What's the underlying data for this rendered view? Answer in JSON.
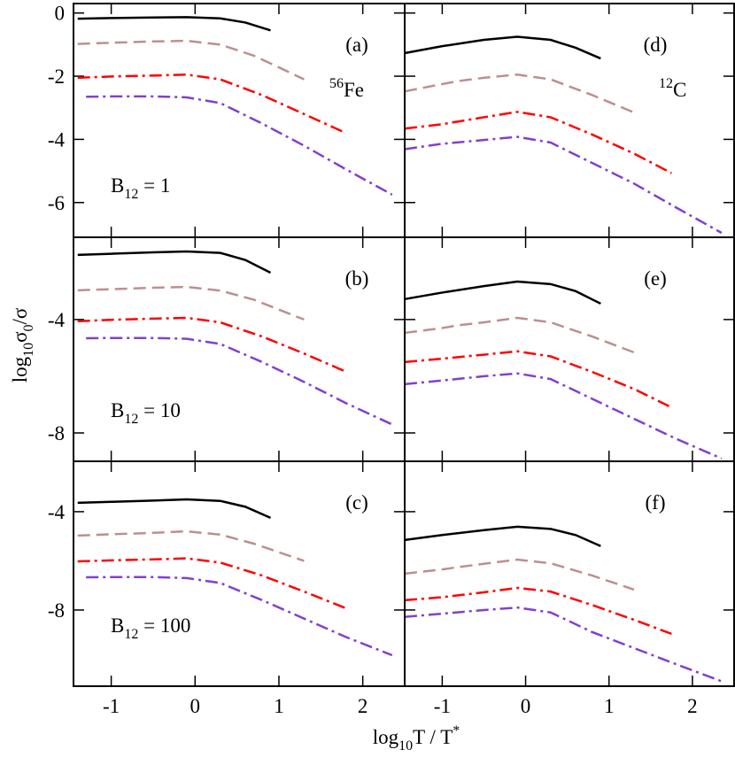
{
  "xlabel": [
    "log",
    "10",
    "T / T",
    "*"
  ],
  "ylabel": [
    "log",
    "10",
    "σ",
    "0",
    "/σ"
  ],
  "chart_data": [
    {
      "type": "line",
      "label": "(a)",
      "nucleus": [
        "56",
        "Fe"
      ],
      "field": [
        "B",
        "12",
        " = 1"
      ],
      "xlim": [
        -1.45,
        2.5
      ],
      "ylim": [
        -7.1,
        0.3
      ],
      "xticks": [
        -1,
        0,
        1,
        2
      ],
      "yticks": [
        -6,
        -4,
        -2,
        0
      ],
      "show_xticklabels": false,
      "show_yticklabels": true,
      "series": [
        {
          "color": "#000000",
          "dash": "solid",
          "x": [
            -1.4,
            -1,
            -0.5,
            -0.1,
            0.3,
            0.6,
            0.9
          ],
          "values": [
            -0.18,
            -0.16,
            -0.14,
            -0.13,
            -0.17,
            -0.3,
            -0.55
          ]
        },
        {
          "color": "#bc8f8f",
          "dash": "dashed",
          "x": [
            -1.4,
            -1,
            -0.5,
            -0.1,
            0.3,
            0.7,
            1.0,
            1.3
          ],
          "values": [
            -0.98,
            -0.94,
            -0.9,
            -0.88,
            -1.0,
            -1.35,
            -1.72,
            -2.1
          ]
        },
        {
          "color": "#ff0000",
          "dash": "dashdot",
          "x": [
            -1.4,
            -1,
            -0.5,
            -0.1,
            0.3,
            0.8,
            1.3,
            1.8
          ],
          "values": [
            -2.05,
            -2.01,
            -1.98,
            -1.95,
            -2.1,
            -2.6,
            -3.2,
            -3.8
          ]
        },
        {
          "color": "#8040d0",
          "dash": "dashdot",
          "x": [
            -1.3,
            -1,
            -0.5,
            -0.1,
            0.3,
            0.8,
            1.3,
            1.8,
            2.35
          ],
          "values": [
            -2.65,
            -2.64,
            -2.64,
            -2.67,
            -2.85,
            -3.5,
            -4.2,
            -4.95,
            -5.75
          ]
        }
      ]
    },
    {
      "type": "line",
      "label": "(b)",
      "field": [
        "B",
        "12",
        " = 10"
      ],
      "xlim": [
        -1.45,
        2.5
      ],
      "ylim": [
        -9,
        -1.1
      ],
      "xticks": [
        -1,
        0,
        1,
        2
      ],
      "yticks": [
        -8,
        -4
      ],
      "show_xticklabels": false,
      "show_yticklabels": true,
      "series": [
        {
          "color": "#000000",
          "dash": "solid",
          "x": [
            -1.4,
            -1,
            -0.5,
            -0.1,
            0.3,
            0.6,
            0.9
          ],
          "values": [
            -1.72,
            -1.68,
            -1.63,
            -1.6,
            -1.65,
            -1.9,
            -2.35
          ]
        },
        {
          "color": "#bc8f8f",
          "dash": "dashed",
          "x": [
            -1.4,
            -1,
            -0.5,
            -0.1,
            0.3,
            0.7,
            1.0,
            1.3
          ],
          "values": [
            -2.97,
            -2.93,
            -2.88,
            -2.85,
            -2.98,
            -3.3,
            -3.65,
            -4.0
          ]
        },
        {
          "color": "#ff0000",
          "dash": "dashdot",
          "x": [
            -1.4,
            -1,
            -0.5,
            -0.1,
            0.3,
            0.8,
            1.3,
            1.8
          ],
          "values": [
            -4.06,
            -4.01,
            -3.97,
            -3.94,
            -4.1,
            -4.6,
            -5.2,
            -5.84
          ]
        },
        {
          "color": "#8040d0",
          "dash": "dashdot",
          "x": [
            -1.3,
            -1,
            -0.5,
            -0.1,
            0.3,
            0.8,
            1.3,
            1.8,
            2.35
          ],
          "values": [
            -4.66,
            -4.65,
            -4.65,
            -4.68,
            -4.86,
            -5.5,
            -6.2,
            -6.95,
            -7.7
          ]
        }
      ]
    },
    {
      "type": "line",
      "label": "(c)",
      "field": [
        "B",
        "12",
        " = 100"
      ],
      "xlim": [
        -1.45,
        2.5
      ],
      "ylim": [
        -11.1,
        -1.95
      ],
      "xticks": [
        -1,
        0,
        1,
        2
      ],
      "yticks": [
        -8,
        -4
      ],
      "show_xticklabels": true,
      "show_yticklabels": true,
      "series": [
        {
          "color": "#000000",
          "dash": "solid",
          "x": [
            -1.4,
            -1,
            -0.5,
            -0.1,
            0.3,
            0.6,
            0.9
          ],
          "values": [
            -3.64,
            -3.6,
            -3.55,
            -3.5,
            -3.56,
            -3.8,
            -4.25
          ]
        },
        {
          "color": "#bc8f8f",
          "dash": "dashed",
          "x": [
            -1.4,
            -1,
            -0.5,
            -0.1,
            0.3,
            0.7,
            1.0,
            1.3
          ],
          "values": [
            -4.97,
            -4.92,
            -4.86,
            -4.8,
            -4.93,
            -5.3,
            -5.65,
            -6.0
          ]
        },
        {
          "color": "#ff0000",
          "dash": "dashdot",
          "x": [
            -1.4,
            -1,
            -0.5,
            -0.1,
            0.3,
            0.8,
            1.3,
            1.8
          ],
          "values": [
            -6.02,
            -5.98,
            -5.94,
            -5.9,
            -6.07,
            -6.6,
            -7.25,
            -7.93
          ]
        },
        {
          "color": "#8040d0",
          "dash": "dashdot",
          "x": [
            -1.3,
            -1,
            -0.5,
            -0.1,
            0.3,
            0.8,
            1.3,
            1.8,
            2.35
          ],
          "values": [
            -6.67,
            -6.66,
            -6.66,
            -6.7,
            -6.9,
            -7.6,
            -8.35,
            -9.1,
            -9.84
          ]
        }
      ]
    },
    {
      "type": "line",
      "label": "(d)",
      "nucleus": [
        "12",
        "C"
      ],
      "xlim": [
        -1.45,
        2.5
      ],
      "ylim": [
        -7.1,
        0.3
      ],
      "xticks": [
        -1,
        0,
        1,
        2
      ],
      "yticks": [
        -6,
        -4,
        -2,
        0
      ],
      "show_xticklabels": false,
      "show_yticklabels": false,
      "series": [
        {
          "color": "#000000",
          "dash": "solid",
          "x": [
            -1.45,
            -1,
            -0.5,
            -0.1,
            0.3,
            0.6,
            0.9
          ],
          "values": [
            -1.27,
            -1.05,
            -0.85,
            -0.75,
            -0.85,
            -1.1,
            -1.44
          ]
        },
        {
          "color": "#bc8f8f",
          "dash": "dashed",
          "x": [
            -1.45,
            -1,
            -0.8,
            -0.5,
            -0.1,
            0.3,
            0.8,
            1.3
          ],
          "values": [
            -2.48,
            -2.25,
            -2.15,
            -2.05,
            -1.95,
            -2.1,
            -2.6,
            -3.15
          ]
        },
        {
          "color": "#ff0000",
          "dash": "dashdot",
          "x": [
            -1.45,
            -1,
            -0.5,
            -0.1,
            0.3,
            0.8,
            1.3,
            1.75
          ],
          "values": [
            -3.66,
            -3.52,
            -3.3,
            -3.13,
            -3.3,
            -3.85,
            -4.45,
            -5.07
          ]
        },
        {
          "color": "#8040d0",
          "dash": "dashdot",
          "x": [
            -1.45,
            -1,
            -0.5,
            -0.1,
            0.3,
            0.8,
            1.3,
            1.8,
            2.35
          ],
          "values": [
            -4.31,
            -4.14,
            -4.02,
            -3.92,
            -4.1,
            -4.75,
            -5.4,
            -6.15,
            -6.96
          ]
        }
      ]
    },
    {
      "type": "line",
      "label": "(e)",
      "xlim": [
        -1.45,
        2.5
      ],
      "ylim": [
        -9,
        -1.1
      ],
      "xticks": [
        -1,
        0,
        1,
        2
      ],
      "yticks": [
        -8,
        -4
      ],
      "show_xticklabels": false,
      "show_yticklabels": false,
      "series": [
        {
          "color": "#000000",
          "dash": "solid",
          "x": [
            -1.45,
            -1,
            -0.5,
            -0.1,
            0.3,
            0.6,
            0.9
          ],
          "values": [
            -3.28,
            -3.05,
            -2.82,
            -2.66,
            -2.75,
            -3.0,
            -3.44
          ]
        },
        {
          "color": "#bc8f8f",
          "dash": "dashed",
          "x": [
            -1.45,
            -1,
            -0.8,
            -0.5,
            -0.1,
            0.3,
            0.8,
            1.3
          ],
          "values": [
            -4.47,
            -4.3,
            -4.2,
            -4.1,
            -3.94,
            -4.1,
            -4.6,
            -5.16
          ]
        },
        {
          "color": "#ff0000",
          "dash": "dashdot",
          "x": [
            -1.45,
            -1,
            -0.5,
            -0.1,
            0.3,
            0.8,
            1.3,
            1.75
          ],
          "values": [
            -5.5,
            -5.38,
            -5.24,
            -5.12,
            -5.3,
            -5.85,
            -6.45,
            -7.1
          ]
        },
        {
          "color": "#8040d0",
          "dash": "dashdot",
          "x": [
            -1.45,
            -1,
            -0.5,
            -0.1,
            0.3,
            0.8,
            1.3,
            1.8,
            2.35
          ],
          "values": [
            -6.28,
            -6.15,
            -6.0,
            -5.9,
            -6.1,
            -6.8,
            -7.5,
            -8.2,
            -8.9
          ]
        }
      ]
    },
    {
      "type": "line",
      "label": "(f)",
      "xlim": [
        -1.45,
        2.5
      ],
      "ylim": [
        -11.1,
        -1.95
      ],
      "xticks": [
        -1,
        0,
        1,
        2
      ],
      "yticks": [
        -8,
        -4
      ],
      "show_xticklabels": true,
      "show_yticklabels": false,
      "series": [
        {
          "color": "#000000",
          "dash": "solid",
          "x": [
            -1.45,
            -1,
            -0.5,
            -0.1,
            0.3,
            0.6,
            0.9
          ],
          "values": [
            -5.15,
            -4.95,
            -4.75,
            -4.61,
            -4.7,
            -4.95,
            -5.4
          ]
        },
        {
          "color": "#bc8f8f",
          "dash": "dashed",
          "x": [
            -1.45,
            -1,
            -0.8,
            -0.5,
            -0.1,
            0.3,
            0.8,
            1.3
          ],
          "values": [
            -6.52,
            -6.35,
            -6.25,
            -6.12,
            -5.95,
            -6.1,
            -6.6,
            -7.17
          ]
        },
        {
          "color": "#ff0000",
          "dash": "dashdot",
          "x": [
            -1.45,
            -1,
            -0.5,
            -0.1,
            0.3,
            0.8,
            1.3,
            1.75
          ],
          "values": [
            -7.6,
            -7.48,
            -7.28,
            -7.1,
            -7.25,
            -7.8,
            -8.4,
            -8.97
          ]
        },
        {
          "color": "#8040d0",
          "dash": "dashdot",
          "x": [
            -1.45,
            -1,
            -0.5,
            -0.1,
            0.3,
            0.8,
            1.3,
            1.8,
            2.35
          ],
          "values": [
            -8.28,
            -8.15,
            -8.0,
            -7.9,
            -8.1,
            -8.9,
            -9.55,
            -10.2,
            -10.9
          ]
        }
      ]
    }
  ]
}
